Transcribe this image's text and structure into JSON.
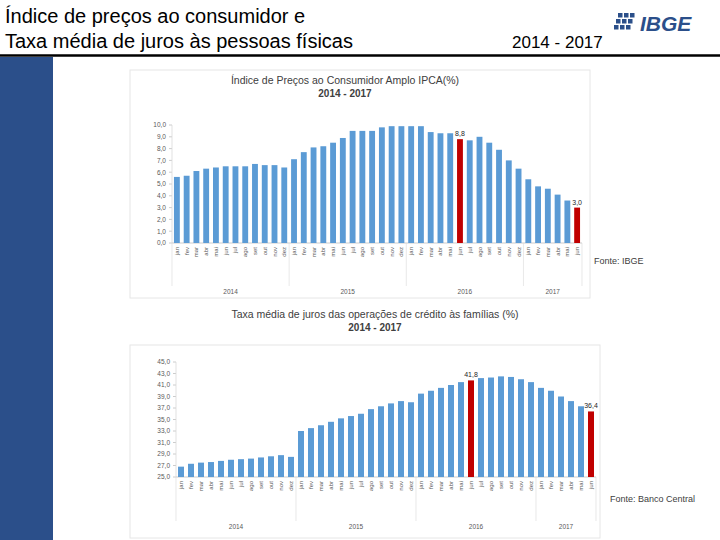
{
  "header": {
    "title": [
      "Índice de preços ao consumidor e",
      "Taxa média de juros às pessoas físicas"
    ],
    "period": "2014 - 2017",
    "logo": "IBGE"
  },
  "chart_data": [
    {
      "type": "bar",
      "title": "Índice de Preços ao Consumidor Amplo IPCA(%)",
      "subtitle": "2014 - 2017",
      "source": "Fonte: IBGE",
      "categories": [
        "jan",
        "fev",
        "mar",
        "abr",
        "mai",
        "jun",
        "jul",
        "ago",
        "set",
        "out",
        "nov",
        "dez",
        "jan",
        "fev",
        "mar",
        "abr",
        "mai",
        "jun",
        "jul",
        "ago",
        "set",
        "out",
        "nov",
        "dez",
        "jan",
        "fev",
        "mar",
        "abr",
        "mai",
        "jun",
        "jul",
        "ago",
        "set",
        "out",
        "nov",
        "dez",
        "jan",
        "fev",
        "mar",
        "abr",
        "mai",
        "jun"
      ],
      "groups": [
        {
          "label": "2014",
          "count": 12
        },
        {
          "label": "2015",
          "count": 12
        },
        {
          "label": "2016",
          "count": 12
        },
        {
          "label": "2017",
          "count": 6
        }
      ],
      "values": [
        5.6,
        5.7,
        6.1,
        6.3,
        6.4,
        6.5,
        6.5,
        6.5,
        6.7,
        6.6,
        6.6,
        6.4,
        7.1,
        7.7,
        8.1,
        8.2,
        8.5,
        8.9,
        9.5,
        9.5,
        9.5,
        9.8,
        9.9,
        9.9,
        9.9,
        9.9,
        9.4,
        9.3,
        9.3,
        8.8,
        8.7,
        9.0,
        8.5,
        7.9,
        7.0,
        6.3,
        5.4,
        4.8,
        4.6,
        4.1,
        3.6,
        3.0
      ],
      "colors": [
        "#5b9bd5",
        "#5b9bd5",
        "#5b9bd5",
        "#5b9bd5",
        "#5b9bd5",
        "#5b9bd5",
        "#5b9bd5",
        "#5b9bd5",
        "#5b9bd5",
        "#5b9bd5",
        "#5b9bd5",
        "#5b9bd5",
        "#5b9bd5",
        "#5b9bd5",
        "#5b9bd5",
        "#5b9bd5",
        "#5b9bd5",
        "#5b9bd5",
        "#5b9bd5",
        "#5b9bd5",
        "#5b9bd5",
        "#5b9bd5",
        "#5b9bd5",
        "#5b9bd5",
        "#5b9bd5",
        "#5b9bd5",
        "#5b9bd5",
        "#5b9bd5",
        "#5b9bd5",
        "#c00000",
        "#5b9bd5",
        "#5b9bd5",
        "#5b9bd5",
        "#5b9bd5",
        "#5b9bd5",
        "#5b9bd5",
        "#5b9bd5",
        "#5b9bd5",
        "#5b9bd5",
        "#5b9bd5",
        "#5b9bd5",
        "#c00000"
      ],
      "data_labels": true,
      "value_labels": [
        null,
        null,
        null,
        null,
        null,
        null,
        null,
        null,
        null,
        null,
        null,
        null,
        null,
        null,
        null,
        null,
        null,
        null,
        null,
        null,
        null,
        null,
        null,
        null,
        null,
        null,
        null,
        null,
        null,
        "8,8",
        null,
        null,
        null,
        null,
        null,
        null,
        null,
        null,
        null,
        null,
        null,
        "3,0"
      ],
      "ylim": [
        0,
        10
      ],
      "yticks": [
        {
          "value": 0,
          "label": "0,0"
        },
        {
          "value": 1,
          "label": "1,0"
        },
        {
          "value": 2,
          "label": "2,0"
        },
        {
          "value": 3,
          "label": "3,0"
        },
        {
          "value": 4,
          "label": "4,0"
        },
        {
          "value": 5,
          "label": "5,0"
        },
        {
          "value": 6,
          "label": "6,0"
        },
        {
          "value": 7,
          "label": "7,0"
        },
        {
          "value": 8,
          "label": "8,0"
        },
        {
          "value": 9,
          "label": "9,0"
        },
        {
          "value": 10,
          "label": "10,0"
        }
      ],
      "grid": false
    },
    {
      "type": "bar",
      "title": "Taxa média de juros das operações de crédito às famílias (%)",
      "subtitle": "2014 - 2017",
      "source": "Fonte: Banco Central",
      "categories": [
        "jan",
        "fev",
        "mar",
        "abr",
        "mai",
        "jun",
        "jul",
        "ago",
        "set",
        "out",
        "nov",
        "dez",
        "jan",
        "fev",
        "mar",
        "abr",
        "mai",
        "jun",
        "jul",
        "ago",
        "set",
        "out",
        "nov",
        "dez",
        "jan",
        "fev",
        "mar",
        "abr",
        "mai",
        "jun",
        "jul",
        "ago",
        "set",
        "out",
        "nov",
        "dez",
        "jan",
        "fev",
        "mar",
        "abr",
        "mai",
        "jun"
      ],
      "groups": [
        {
          "label": "2014",
          "count": 12
        },
        {
          "label": "2015",
          "count": 12
        },
        {
          "label": "2016",
          "count": 12
        },
        {
          "label": "2017",
          "count": 6
        }
      ],
      "values": [
        26.8,
        27.3,
        27.5,
        27.6,
        27.8,
        28.0,
        28.1,
        28.2,
        28.4,
        28.6,
        28.8,
        28.5,
        33.0,
        33.5,
        34.0,
        34.6,
        35.2,
        35.6,
        36.0,
        36.8,
        37.3,
        37.8,
        38.2,
        38.0,
        39.5,
        40.0,
        40.5,
        41.0,
        41.5,
        41.8,
        42.2,
        42.3,
        42.5,
        42.4,
        42.0,
        41.5,
        40.5,
        40.0,
        39.0,
        38.2,
        37.3,
        36.4
      ],
      "colors": [
        "#5b9bd5",
        "#5b9bd5",
        "#5b9bd5",
        "#5b9bd5",
        "#5b9bd5",
        "#5b9bd5",
        "#5b9bd5",
        "#5b9bd5",
        "#5b9bd5",
        "#5b9bd5",
        "#5b9bd5",
        "#5b9bd5",
        "#5b9bd5",
        "#5b9bd5",
        "#5b9bd5",
        "#5b9bd5",
        "#5b9bd5",
        "#5b9bd5",
        "#5b9bd5",
        "#5b9bd5",
        "#5b9bd5",
        "#5b9bd5",
        "#5b9bd5",
        "#5b9bd5",
        "#5b9bd5",
        "#5b9bd5",
        "#5b9bd5",
        "#5b9bd5",
        "#5b9bd5",
        "#c00000",
        "#5b9bd5",
        "#5b9bd5",
        "#5b9bd5",
        "#5b9bd5",
        "#5b9bd5",
        "#5b9bd5",
        "#5b9bd5",
        "#5b9bd5",
        "#5b9bd5",
        "#5b9bd5",
        "#5b9bd5",
        "#c00000"
      ],
      "data_labels": true,
      "value_labels": [
        null,
        null,
        null,
        null,
        null,
        null,
        null,
        null,
        null,
        null,
        null,
        null,
        null,
        null,
        null,
        null,
        null,
        null,
        null,
        null,
        null,
        null,
        null,
        null,
        null,
        null,
        null,
        null,
        null,
        "41,8",
        null,
        null,
        null,
        null,
        null,
        null,
        null,
        null,
        null,
        null,
        null,
        "36,4"
      ],
      "ylim": [
        25,
        45
      ],
      "yticks": [
        {
          "value": 25,
          "label": "25,0"
        },
        {
          "value": 27,
          "label": "27,0"
        },
        {
          "value": 29,
          "label": "29,0"
        },
        {
          "value": 31,
          "label": "31,0"
        },
        {
          "value": 33,
          "label": "33,0"
        },
        {
          "value": 35,
          "label": "35,0"
        },
        {
          "value": 37,
          "label": "37,0"
        },
        {
          "value": 39,
          "label": "39,0"
        },
        {
          "value": 41,
          "label": "41,0"
        },
        {
          "value": 43,
          "label": "43,0"
        },
        {
          "value": 45,
          "label": "45,0"
        }
      ],
      "grid": false
    }
  ]
}
